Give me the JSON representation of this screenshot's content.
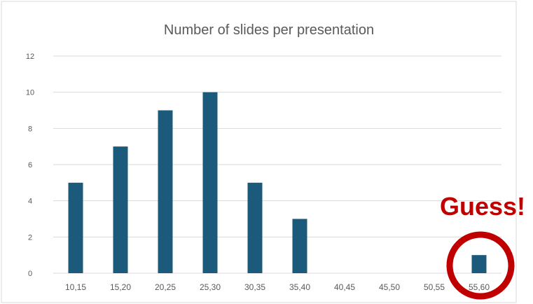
{
  "chart_data": {
    "type": "bar",
    "title": "Number of slides per presentation",
    "categories": [
      "10,15",
      "15,20",
      "20,25",
      "25,30",
      "30,35",
      "35,40",
      "40,45",
      "45,50",
      "50,55",
      "55,60"
    ],
    "values": [
      5,
      7,
      9,
      10,
      5,
      3,
      0,
      0,
      0,
      1
    ],
    "ylim": [
      0,
      12
    ],
    "yticks": [
      0,
      2,
      4,
      6,
      8,
      10,
      12
    ],
    "grid": true,
    "legend": "none",
    "bar_color": "#1b5a7a"
  },
  "annotation": {
    "text": "Guess!",
    "color": "#c00000",
    "target_category": "55,60"
  }
}
